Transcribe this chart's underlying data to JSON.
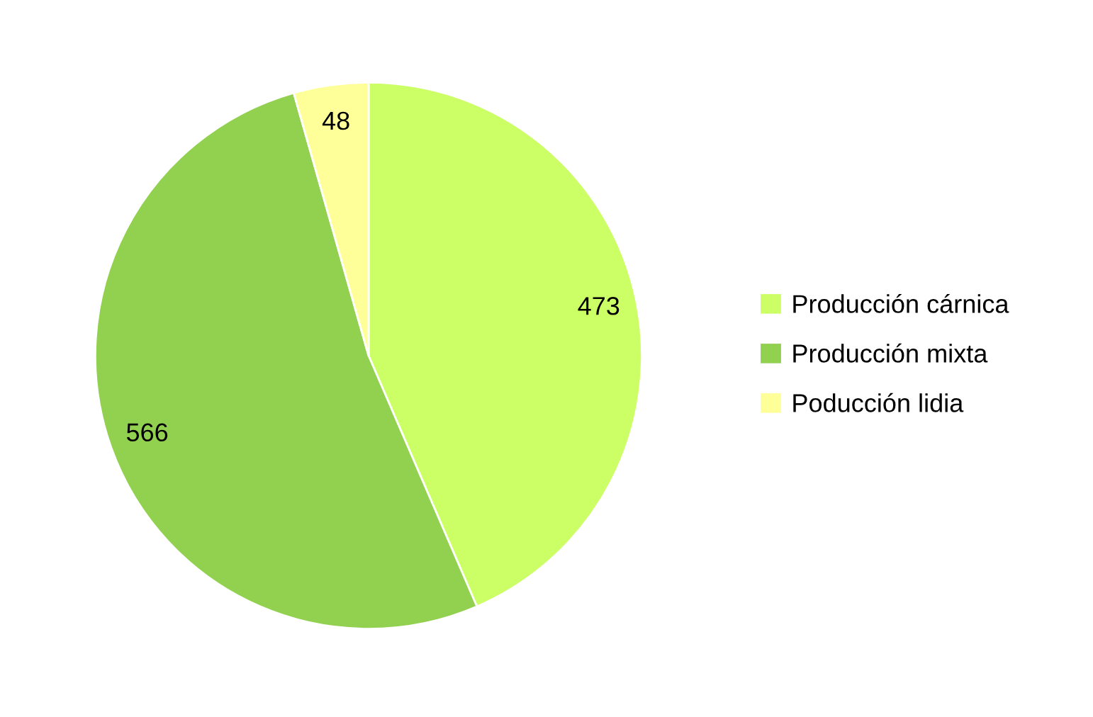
{
  "chart_data": {
    "type": "pie",
    "categories": [
      "Producción cárnica",
      "Producción mixta",
      "Poducción lidia"
    ],
    "values": [
      473,
      566,
      48
    ],
    "colors": [
      "#ccff66",
      "#92d050",
      "#ffff99"
    ],
    "data_labels": true,
    "legend": "right"
  }
}
